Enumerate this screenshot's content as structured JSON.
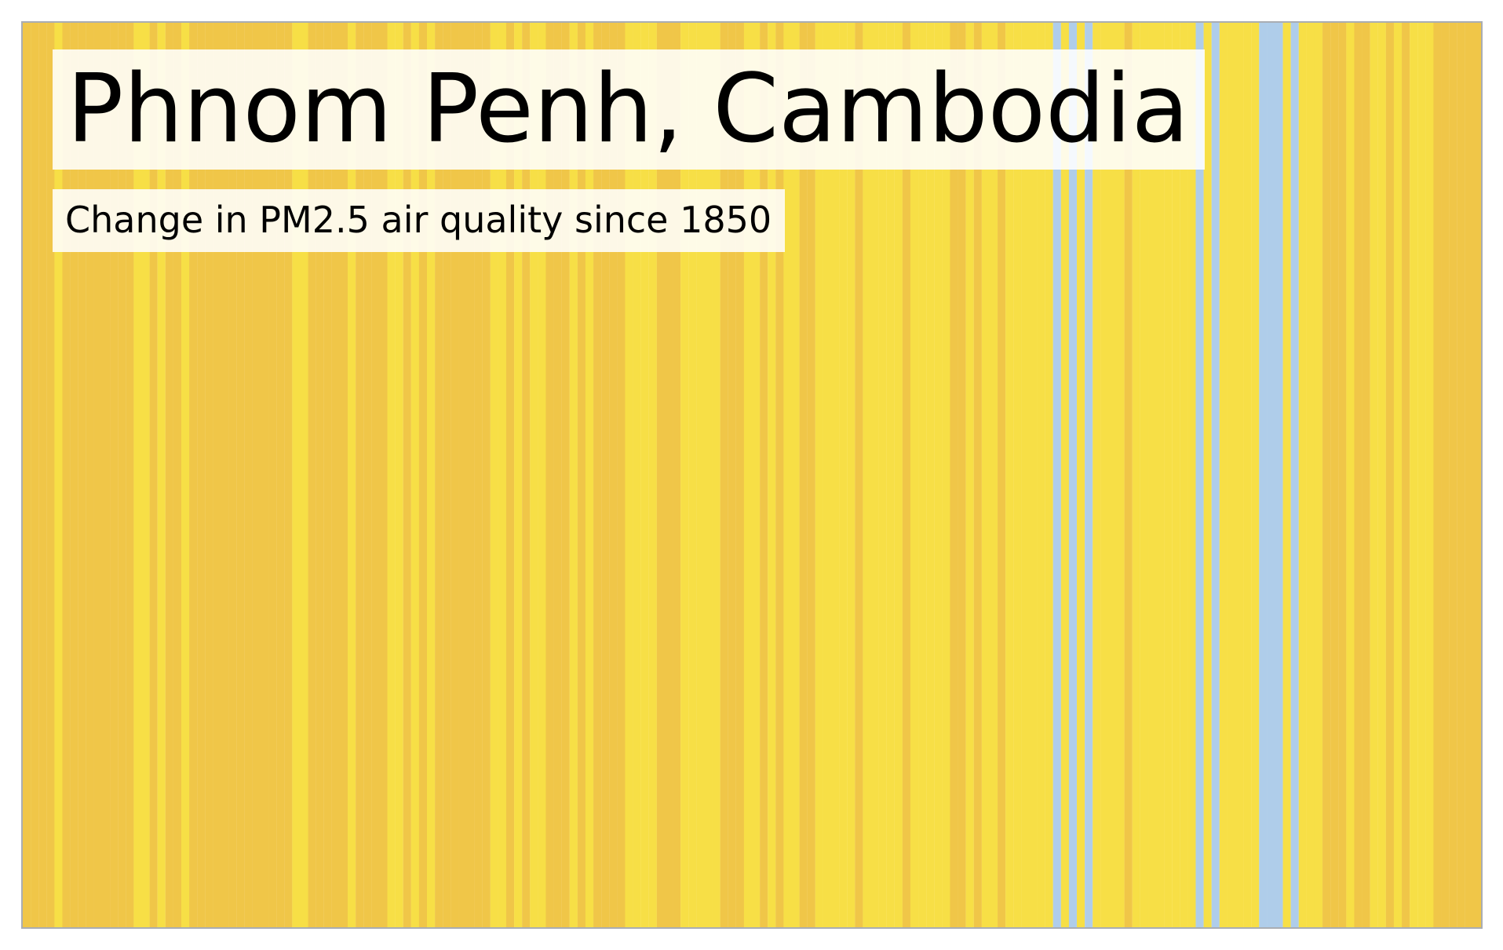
{
  "chart_data": {
    "type": "heatmap",
    "title": "Phnom Penh, Cambodia",
    "subtitle": "Change in PM2.5 air quality since 1850",
    "x_start": 1850,
    "colors": {
      "dark_yellow": "#f0c648",
      "yellow": "#f7df46",
      "light_blue": "#afcdea"
    },
    "stripes": [
      "dark_yellow",
      "dark_yellow",
      "dark_yellow",
      "dark_yellow",
      "yellow",
      "dark_yellow",
      "dark_yellow",
      "dark_yellow",
      "dark_yellow",
      "dark_yellow",
      "dark_yellow",
      "dark_yellow",
      "dark_yellow",
      "dark_yellow",
      "yellow",
      "yellow",
      "dark_yellow",
      "yellow",
      "dark_yellow",
      "dark_yellow",
      "yellow",
      "dark_yellow",
      "dark_yellow",
      "dark_yellow",
      "dark_yellow",
      "dark_yellow",
      "dark_yellow",
      "dark_yellow",
      "dark_yellow",
      "dark_yellow",
      "dark_yellow",
      "dark_yellow",
      "dark_yellow",
      "dark_yellow",
      "yellow",
      "yellow",
      "dark_yellow",
      "dark_yellow",
      "dark_yellow",
      "dark_yellow",
      "dark_yellow",
      "yellow",
      "dark_yellow",
      "dark_yellow",
      "dark_yellow",
      "dark_yellow",
      "yellow",
      "yellow",
      "dark_yellow",
      "yellow",
      "dark_yellow",
      "yellow",
      "dark_yellow",
      "dark_yellow",
      "dark_yellow",
      "dark_yellow",
      "dark_yellow",
      "dark_yellow",
      "dark_yellow",
      "yellow",
      "yellow",
      "dark_yellow",
      "yellow",
      "dark_yellow",
      "yellow",
      "yellow",
      "dark_yellow",
      "dark_yellow",
      "dark_yellow",
      "yellow",
      "dark_yellow",
      "yellow",
      "dark_yellow",
      "dark_yellow",
      "dark_yellow",
      "dark_yellow",
      "yellow",
      "yellow",
      "yellow",
      "yellow",
      "dark_yellow",
      "dark_yellow",
      "dark_yellow",
      "yellow",
      "yellow",
      "yellow",
      "yellow",
      "yellow",
      "dark_yellow",
      "dark_yellow",
      "dark_yellow",
      "yellow",
      "yellow",
      "dark_yellow",
      "yellow",
      "dark_yellow",
      "yellow",
      "yellow",
      "dark_yellow",
      "dark_yellow",
      "yellow",
      "yellow",
      "yellow",
      "yellow",
      "yellow",
      "dark_yellow",
      "yellow",
      "yellow",
      "yellow",
      "yellow",
      "yellow",
      "dark_yellow",
      "yellow",
      "yellow",
      "yellow",
      "yellow",
      "yellow",
      "dark_yellow",
      "dark_yellow",
      "yellow",
      "dark_yellow",
      "yellow",
      "yellow",
      "dark_yellow",
      "yellow",
      "yellow",
      "yellow",
      "yellow",
      "yellow",
      "yellow",
      "light_blue",
      "yellow",
      "light_blue",
      "yellow",
      "light_blue",
      "yellow",
      "yellow",
      "yellow",
      "yellow",
      "dark_yellow",
      "yellow",
      "yellow",
      "yellow",
      "yellow",
      "yellow",
      "yellow",
      "yellow",
      "yellow",
      "light_blue",
      "yellow",
      "light_blue",
      "yellow",
      "yellow",
      "yellow",
      "yellow",
      "yellow",
      "light_blue",
      "light_blue",
      "light_blue",
      "yellow",
      "light_blue",
      "yellow",
      "yellow",
      "yellow",
      "dark_yellow",
      "dark_yellow",
      "dark_yellow",
      "yellow",
      "dark_yellow",
      "dark_yellow",
      "yellow",
      "yellow",
      "dark_yellow",
      "yellow",
      "dark_yellow",
      "yellow",
      "yellow",
      "yellow",
      "dark_yellow",
      "dark_yellow",
      "dark_yellow",
      "dark_yellow",
      "dark_yellow",
      "dark_yellow"
    ]
  }
}
